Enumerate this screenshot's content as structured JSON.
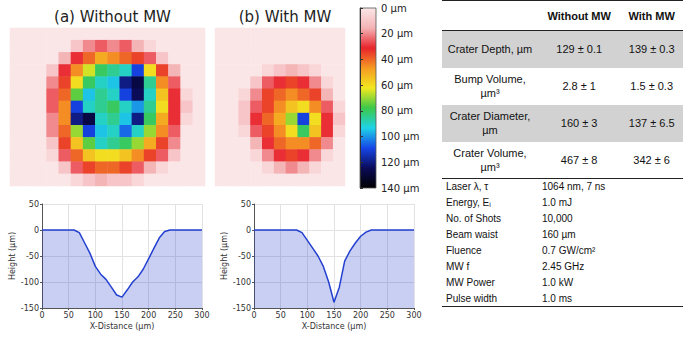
{
  "chart_data": [
    {
      "type": "heatmap",
      "title": "(a) Without MW",
      "tick_labels": false,
      "cells": [
        [
          0,
          0,
          0,
          0,
          0,
          0,
          0,
          0,
          0,
          0,
          0,
          0,
          0,
          0,
          0,
          0
        ],
        [
          0,
          0,
          0,
          0,
          0,
          10,
          20,
          25,
          20,
          25,
          15,
          5,
          0,
          0,
          0,
          0
        ],
        [
          0,
          0,
          0,
          0,
          15,
          30,
          40,
          50,
          45,
          40,
          35,
          25,
          10,
          0,
          0,
          0
        ],
        [
          0,
          0,
          0,
          10,
          30,
          45,
          65,
          80,
          85,
          90,
          110,
          60,
          35,
          15,
          0,
          0
        ],
        [
          0,
          0,
          0,
          20,
          35,
          60,
          80,
          90,
          95,
          120,
          128,
          85,
          45,
          25,
          0,
          0
        ],
        [
          0,
          0,
          0,
          25,
          40,
          75,
          95,
          85,
          90,
          110,
          125,
          90,
          55,
          30,
          5,
          0
        ],
        [
          0,
          0,
          0,
          25,
          45,
          110,
          90,
          85,
          80,
          90,
          100,
          85,
          60,
          30,
          10,
          0
        ],
        [
          0,
          0,
          0,
          20,
          45,
          120,
          128,
          90,
          85,
          95,
          120,
          80,
          50,
          30,
          5,
          0
        ],
        [
          0,
          0,
          0,
          20,
          40,
          70,
          110,
          95,
          90,
          105,
          90,
          70,
          45,
          25,
          0,
          0
        ],
        [
          0,
          0,
          0,
          10,
          35,
          55,
          75,
          90,
          85,
          80,
          70,
          50,
          35,
          20,
          0,
          0
        ],
        [
          0,
          0,
          0,
          5,
          25,
          40,
          55,
          60,
          60,
          55,
          45,
          35,
          25,
          10,
          0,
          0
        ],
        [
          0,
          0,
          0,
          0,
          10,
          25,
          35,
          40,
          40,
          35,
          25,
          15,
          5,
          0,
          0,
          0
        ],
        [
          0,
          0,
          0,
          0,
          0,
          5,
          10,
          15,
          10,
          10,
          5,
          0,
          0,
          0,
          0,
          0
        ]
      ]
    },
    {
      "type": "heatmap",
      "title": "(b) With MW",
      "tick_labels": false,
      "cells": [
        [
          0,
          0,
          0,
          0,
          0,
          0,
          0,
          0,
          0,
          0,
          0
        ],
        [
          0,
          0,
          0,
          0,
          0,
          0,
          0,
          0,
          0,
          0,
          0
        ],
        [
          0,
          0,
          0,
          0,
          0,
          0,
          0,
          0,
          0,
          0,
          0
        ],
        [
          0,
          0,
          0,
          0,
          5,
          10,
          15,
          10,
          5,
          0,
          0
        ],
        [
          0,
          0,
          0,
          10,
          25,
          30,
          35,
          30,
          20,
          5,
          0
        ],
        [
          0,
          0,
          5,
          20,
          35,
          40,
          45,
          40,
          35,
          15,
          0
        ],
        [
          0,
          0,
          10,
          25,
          35,
          45,
          55,
          60,
          45,
          25,
          5
        ],
        [
          0,
          0,
          10,
          30,
          40,
          50,
          70,
          110,
          60,
          30,
          10
        ],
        [
          0,
          0,
          5,
          25,
          35,
          45,
          60,
          80,
          55,
          30,
          5
        ],
        [
          0,
          0,
          0,
          15,
          30,
          40,
          45,
          45,
          40,
          20,
          0
        ],
        [
          0,
          0,
          0,
          5,
          20,
          30,
          35,
          30,
          20,
          5,
          0
        ],
        [
          0,
          0,
          0,
          0,
          5,
          15,
          20,
          15,
          5,
          0,
          0
        ],
        [
          0,
          0,
          0,
          0,
          0,
          0,
          0,
          0,
          0,
          0,
          0
        ]
      ]
    },
    {
      "type": "line",
      "x_label": "X-Distance (µm)",
      "y_label": "Height (µm)",
      "color": "#2340d0",
      "grid": true,
      "x": [
        0,
        10,
        20,
        30,
        40,
        50,
        60,
        70,
        80,
        90,
        100,
        110,
        120,
        130,
        140,
        150,
        160,
        170,
        180,
        190,
        200,
        210,
        220,
        230,
        240,
        250,
        260,
        270,
        280,
        290,
        300
      ],
      "values": [
        0,
        0,
        0,
        0,
        0,
        0,
        0,
        -5,
        -25,
        -45,
        -70,
        -85,
        -95,
        -110,
        -125,
        -129,
        -115,
        -100,
        -90,
        -75,
        -55,
        -35,
        -15,
        -3,
        0,
        0,
        0,
        0,
        0,
        0,
        0
      ],
      "xlim": [
        0,
        300
      ],
      "xticks": [
        0,
        50,
        100,
        150,
        200,
        250,
        300
      ],
      "ylim": [
        -150,
        50
      ],
      "yticks": [
        -150,
        -100,
        -50,
        0,
        50
      ]
    },
    {
      "type": "line",
      "x_label": "X-Distance (µm)",
      "y_label": "Height (µm)",
      "color": "#2340d0",
      "grid": true,
      "x": [
        0,
        10,
        20,
        30,
        40,
        50,
        60,
        70,
        80,
        90,
        100,
        110,
        120,
        130,
        140,
        150,
        160,
        170,
        180,
        190,
        200,
        210,
        220,
        230,
        240,
        250,
        260,
        270,
        280,
        290,
        300
      ],
      "values": [
        0,
        0,
        0,
        0,
        0,
        0,
        0,
        0,
        0,
        -5,
        -20,
        -35,
        -50,
        -70,
        -100,
        -139,
        -110,
        -60,
        -40,
        -25,
        -12,
        -4,
        0,
        0,
        0,
        0,
        0,
        0,
        0,
        0,
        0
      ],
      "xlim": [
        0,
        300
      ],
      "xticks": [
        0,
        50,
        100,
        150,
        200,
        250,
        300
      ],
      "ylim": [
        -150,
        50
      ],
      "yticks": [
        -150,
        -100,
        -50,
        0,
        50
      ]
    }
  ],
  "colorbar": {
    "range": [
      0,
      140
    ],
    "ticks": [
      {
        "value": 0,
        "label": "0 µm"
      },
      {
        "value": 20,
        "label": "20 µm"
      },
      {
        "value": 40,
        "label": "40 µm"
      },
      {
        "value": 60,
        "label": "60 µm"
      },
      {
        "value": 80,
        "label": "80 µm"
      },
      {
        "value": 100,
        "label": "100 µm"
      },
      {
        "value": 120,
        "label": "120 µm"
      },
      {
        "value": 140,
        "label": "140 µm"
      }
    ],
    "colors": [
      "#fbe6e7",
      "#f4b3b5",
      "#e8242c",
      "#f59a23",
      "#f2e81f",
      "#3cc84a",
      "#1fd3e6",
      "#1646e8",
      "#0b0b5a",
      "#000000"
    ]
  },
  "table": {
    "columns": [
      "Without MW",
      "With MW"
    ],
    "rows": [
      {
        "label": "Crater Depth, µm",
        "values": [
          "129 ± 0.1",
          "139 ± 0.3"
        ]
      },
      {
        "label": "Bump Volume, µm³",
        "values": [
          "2.8 ± 1",
          "1.5 ± 0.3"
        ]
      },
      {
        "label": "Crater Diameter, µm",
        "values": [
          "160 ± 3",
          "137 ± 6.5"
        ]
      },
      {
        "label": "Crater Volume, µm³",
        "values": [
          "467 ± 8",
          "342 ± 6"
        ]
      }
    ],
    "parameters": [
      {
        "label": "Laser λ, τ",
        "value": "1064 nm, 7 ns"
      },
      {
        "label": "Energy, Eᵢ",
        "value": "1.0 mJ"
      },
      {
        "label": "No. of Shots",
        "value": "10,000"
      },
      {
        "label": "Beam waist",
        "value": "160 µm"
      },
      {
        "label": "Fluence",
        "value": "0.7 GW/cm²"
      },
      {
        "label": "MW f",
        "value": "2.45 GHz"
      },
      {
        "label": "MW Power",
        "value": "1.0 kW"
      },
      {
        "label": "Pulse width",
        "value": "1.0 ms"
      }
    ]
  }
}
